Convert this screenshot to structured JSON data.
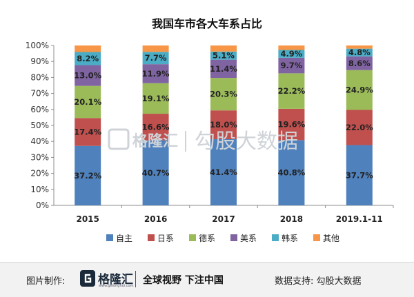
{
  "chart_data": {
    "type": "bar",
    "stacked": true,
    "title": "我国车市各大车系占比",
    "categories": [
      "2015",
      "2016",
      "2017",
      "2018",
      "2019.1-11"
    ],
    "series": [
      {
        "name": "自主",
        "color": "#4f81bd",
        "values": [
          37.2,
          40.7,
          41.4,
          40.8,
          37.7
        ],
        "labels": [
          "37.2%",
          "40.7%",
          "41.4%",
          "40.8%",
          "37.7%"
        ]
      },
      {
        "name": "日系",
        "color": "#c0504d",
        "values": [
          17.4,
          16.6,
          18.0,
          19.6,
          22.0
        ],
        "labels": [
          "17.4%",
          "16.6%",
          "18.0%",
          "19.6%",
          "22.0%"
        ]
      },
      {
        "name": "德系",
        "color": "#9bbb59",
        "values": [
          20.1,
          19.1,
          20.3,
          22.2,
          24.9
        ],
        "labels": [
          "20.1%",
          "19.1%",
          "20.3%",
          "22.2%",
          "24.9%"
        ]
      },
      {
        "name": "美系",
        "color": "#8064a2",
        "values": [
          13.0,
          11.9,
          11.4,
          9.7,
          8.6
        ],
        "labels": [
          "13.0%",
          "11.9%",
          "11.4%",
          "9.7%",
          "8.6%"
        ]
      },
      {
        "name": "韩系",
        "color": "#4bacc6",
        "values": [
          8.2,
          7.7,
          5.1,
          4.9,
          4.8
        ],
        "labels": [
          "8.2%",
          "7.7%",
          "5.1%",
          "4.9%",
          "4.8%"
        ]
      },
      {
        "name": "其他",
        "color": "#f79646",
        "values": [
          4.1,
          4.0,
          3.8,
          2.8,
          2.0
        ],
        "labels": [
          "",
          "",
          "",
          "",
          ""
        ]
      }
    ],
    "ylim": [
      0,
      100
    ],
    "yticks": [
      "0%",
      "10%",
      "20%",
      "30%",
      "40%",
      "50%",
      "60%",
      "70%",
      "80%",
      "90%",
      "100%"
    ],
    "grid": false,
    "legend_position": "bottom"
  },
  "watermark": {
    "logo_text": "格隆汇",
    "text": "勾股大数据"
  },
  "footer": {
    "credit": "图片制作:",
    "logo_text": "格隆汇",
    "logo_sub": "www.gelonghui.com",
    "slogan": "全球视野 下注中国",
    "source": "数据支持: 勾股大数据"
  }
}
